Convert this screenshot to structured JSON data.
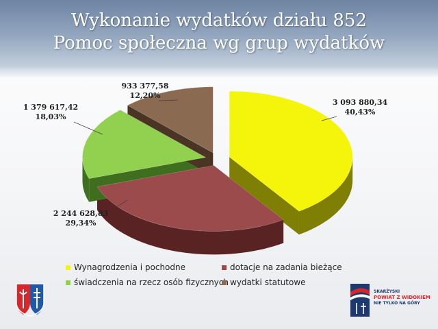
{
  "title": {
    "line1": "Wykonanie wydatków działu 852",
    "line2": "Pomoc społeczna wg grup wydatków"
  },
  "chart_data": {
    "type": "pie",
    "title": "Wykonanie wydatków działu 852 Pomoc społeczna wg grup wydatków",
    "categories": [
      "Wynagrodzenia i pochodne",
      "dotacje na zadania bieżące",
      "świadczenia na rzecz osób fizycznych",
      "wydatki statutowe"
    ],
    "values": [
      3093880.34,
      2244628.83,
      1379617.42,
      933377.58
    ],
    "value_labels": [
      "3 093 880,34",
      "2 244 628,83",
      "1 379 617,42",
      "933 377,58"
    ],
    "percent_labels": [
      "40,43%",
      "29,34%",
      "18,03%",
      "12,20%"
    ],
    "colors": [
      "#f5f50c",
      "#9b4b4b",
      "#92d14f",
      "#8a6a50"
    ],
    "side_colors": [
      "#7f7f06",
      "#5a2323",
      "#3f6f1e",
      "#4a3524"
    ],
    "legend_position": "bottom",
    "exploded": true,
    "three_d": true
  },
  "logos": {
    "right_line1": "SKARŻYSKI",
    "right_line2": "POWIAT Z WIDOKIEM",
    "right_line3": "NIE TYLKO NA GÓRY"
  }
}
